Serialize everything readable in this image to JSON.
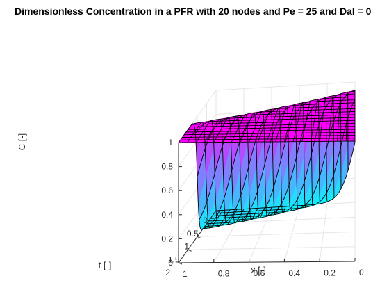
{
  "chart_data": {
    "type": "surface",
    "title": "Dimensionless Concentration in a PFR with 20 nodes and Pe = 25 and DaI = 0",
    "xlabel": "x [-]",
    "ylabel": "t [-]",
    "zlabel": "C [-]",
    "x_ticks": [
      "0",
      "0.2",
      "0.4",
      "0.6",
      "0.8",
      "1"
    ],
    "t_ticks": [
      "0",
      "0.5",
      "1",
      "1.5",
      "2"
    ],
    "z_ticks": [
      "0",
      "0.2",
      "0.4",
      "0.6",
      "0.8",
      "1"
    ],
    "xlim": [
      0,
      1
    ],
    "tlim": [
      0,
      2
    ],
    "zlim": [
      0,
      1
    ],
    "grid": true,
    "x_nodes": 20,
    "front_speed": 1.0,
    "front_width": 0.15,
    "colormap": [
      "#00ffff",
      "#ff00ff"
    ],
    "edge_color": "#000000"
  }
}
